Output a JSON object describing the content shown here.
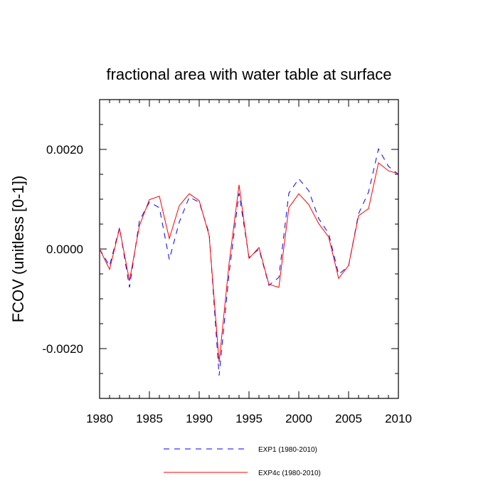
{
  "chart_data": {
    "type": "line",
    "title": "fractional area with water table at surface",
    "xlabel": "",
    "ylabel": "FCOV  (unitless [0-1])",
    "xlim": [
      1980,
      2010
    ],
    "ylim": [
      -0.003,
      0.003
    ],
    "x_ticks": [
      1980,
      1985,
      1990,
      1995,
      2000,
      2005,
      2010
    ],
    "x_tick_labels": [
      "1980",
      "1985",
      "1990",
      "1995",
      "2000",
      "2005",
      "2010"
    ],
    "y_ticks": [
      -0.002,
      0.0,
      0.002
    ],
    "y_tick_labels": [
      "-0.0020",
      "0.0000",
      "0.0020"
    ],
    "y_minor_step": 0.0005,
    "x_minor_step": 1,
    "grid": false,
    "legend_position": "bottom",
    "x": [
      1980,
      1981,
      1982,
      1983,
      1984,
      1985,
      1986,
      1987,
      1988,
      1989,
      1990,
      1991,
      1992,
      1993,
      1994,
      1995,
      1996,
      1997,
      1998,
      1999,
      2000,
      2001,
      2002,
      2003,
      2004,
      2005,
      2006,
      2007,
      2008,
      2009,
      2010
    ],
    "series": [
      {
        "name": "EXP1 (1980-2010)",
        "color": "#0000ff",
        "dash": "dashed",
        "values": [
          0.0,
          -0.00034,
          0.00043,
          -0.00077,
          0.00057,
          0.00094,
          0.00083,
          -0.00021,
          0.00054,
          0.00104,
          0.00094,
          0.00031,
          -0.00254,
          -0.00049,
          0.00112,
          -0.00017,
          0.0,
          -0.00073,
          -0.00057,
          0.00112,
          0.00141,
          0.00117,
          0.00061,
          0.00031,
          -0.00051,
          -0.00034,
          0.00071,
          0.00114,
          0.00201,
          0.00166,
          0.0015
        ]
      },
      {
        "name": "EXP4c (1980-2010)",
        "color": "#ff0000",
        "dash": "solid",
        "values": [
          0.0,
          -0.00041,
          0.00041,
          -0.00064,
          0.00047,
          0.00099,
          0.00106,
          0.00021,
          0.00087,
          0.00111,
          0.00097,
          0.00027,
          -0.00227,
          -0.00029,
          0.00129,
          -0.00019,
          3e-05,
          -0.00071,
          -0.00077,
          0.00083,
          0.00111,
          0.00089,
          0.00051,
          0.00024,
          -0.00059,
          -0.00033,
          0.00067,
          0.00081,
          0.00173,
          0.00157,
          0.00151
        ]
      }
    ]
  }
}
